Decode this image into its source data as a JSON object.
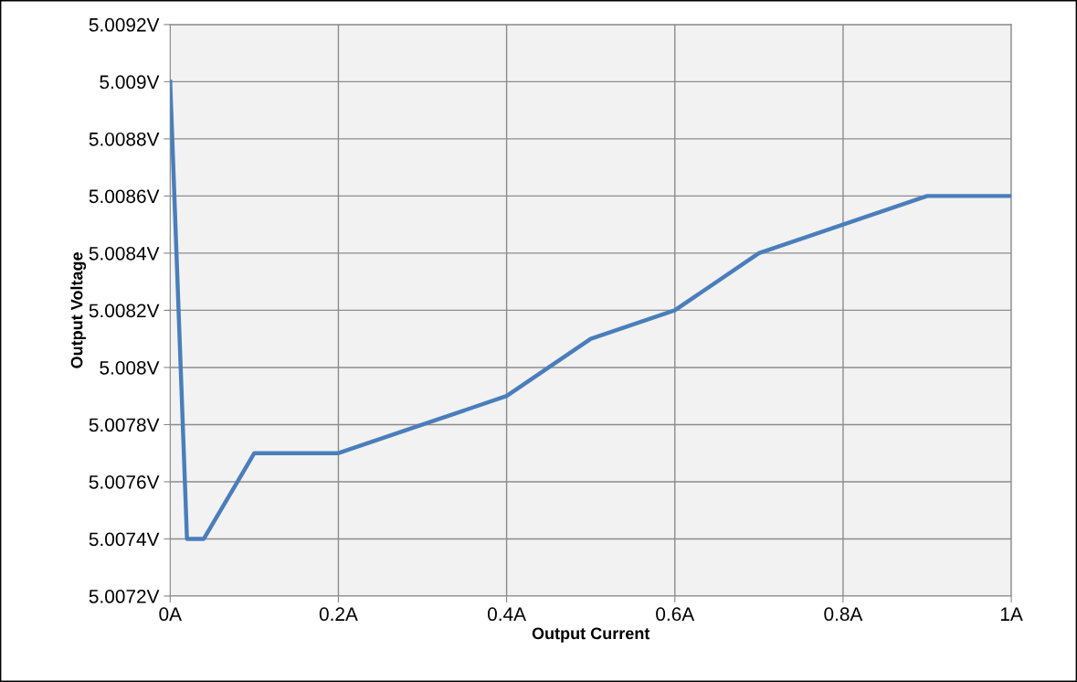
{
  "chart_data": {
    "type": "line",
    "xlabel": "Output Current",
    "ylabel": "Output Voltage",
    "x": [
      0,
      0.02,
      0.04,
      0.1,
      0.2,
      0.3,
      0.4,
      0.5,
      0.6,
      0.7,
      0.8,
      0.9,
      1.0
    ],
    "series": [
      {
        "color": "#4a7ebb",
        "values": [
          5.009,
          5.0074,
          5.0074,
          5.0077,
          5.0077,
          5.0078,
          5.0079,
          5.0081,
          5.0082,
          5.0084,
          5.0085,
          5.0086,
          5.0086
        ]
      }
    ],
    "xlim": [
      0,
      1
    ],
    "ylim": [
      5.0072,
      5.0092
    ],
    "xticks": [
      {
        "value": 0,
        "label": "0A"
      },
      {
        "value": 0.2,
        "label": "0.2A"
      },
      {
        "value": 0.4,
        "label": "0.4A"
      },
      {
        "value": 0.6,
        "label": "0.6A"
      },
      {
        "value": 0.8,
        "label": "0.8A"
      },
      {
        "value": 1,
        "label": "1A"
      }
    ],
    "yticks": [
      {
        "value": 5.0072,
        "label": "5.0072V"
      },
      {
        "value": 5.0074,
        "label": "5.0074V"
      },
      {
        "value": 5.0076,
        "label": "5.0076V"
      },
      {
        "value": 5.0078,
        "label": "5.0078V"
      },
      {
        "value": 5.008,
        "label": "5.008V"
      },
      {
        "value": 5.0082,
        "label": "5.0082V"
      },
      {
        "value": 5.0084,
        "label": "5.0084V"
      },
      {
        "value": 5.0086,
        "label": "5.0086V"
      },
      {
        "value": 5.0088,
        "label": "5.0088V"
      },
      {
        "value": 5.009,
        "label": "5.009V"
      },
      {
        "value": 5.0092,
        "label": "5.0092V"
      }
    ],
    "grid": true,
    "legend": false,
    "marker": "none",
    "line_style": "solid"
  }
}
